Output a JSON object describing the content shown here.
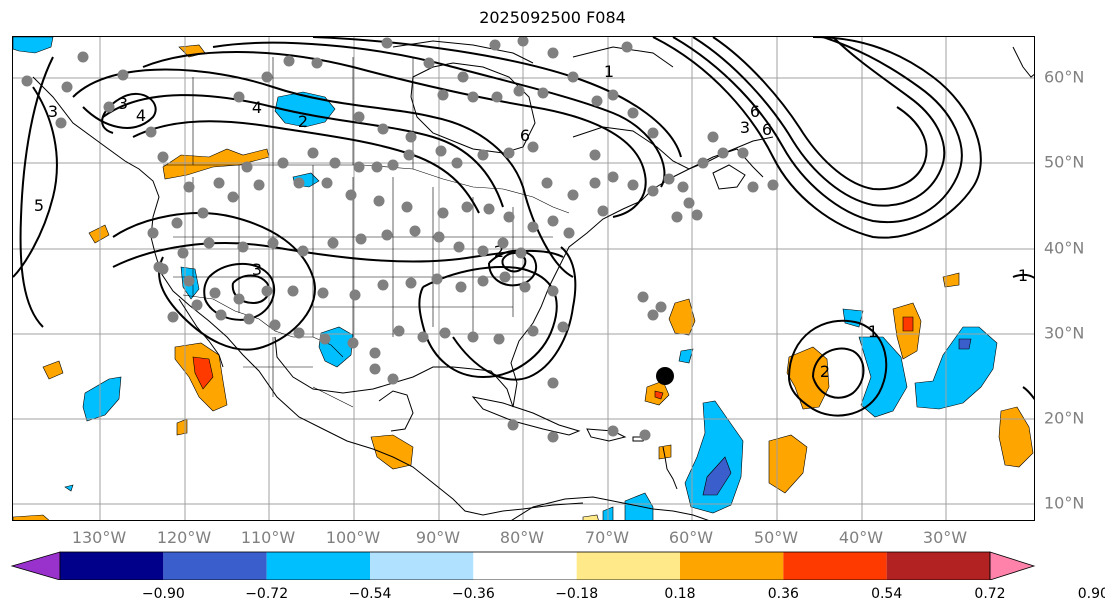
{
  "title": "2025092500 F084",
  "longitude_labels": [
    "130°W",
    "120°W",
    "110°W",
    "100°W",
    "90°W",
    "80°W",
    "70°W",
    "60°W",
    "50°W",
    "40°W",
    "30°W"
  ],
  "latitude_labels": [
    "60°N",
    "50°N",
    "40°N",
    "30°N",
    "20°N",
    "10°N"
  ],
  "contour_labels": [
    "2",
    "3",
    "4",
    "4",
    "5",
    "6",
    "6",
    "1",
    "1",
    "1",
    "2",
    "3",
    "2",
    "3",
    "6",
    "3"
  ],
  "colorbar": {
    "tick_labels": [
      "−0.90",
      "−0.72",
      "−0.54",
      "−0.36",
      "−0.18",
      "0.18",
      "0.36",
      "0.54",
      "0.72",
      "0.90"
    ],
    "colors": [
      "#9932cc",
      "#00008b",
      "#3a5fcd",
      "#00bfff",
      "#b0e2ff",
      "#ffffff",
      "#ffe989",
      "#ffa500",
      "#ff3a00",
      "#b22222",
      "#ff82ab"
    ],
    "extend": "both"
  },
  "style": {
    "gridline_color": "#a0a0a0",
    "station_color": "#808080",
    "contour_color": "#000000",
    "marker_color": "#000000"
  }
}
